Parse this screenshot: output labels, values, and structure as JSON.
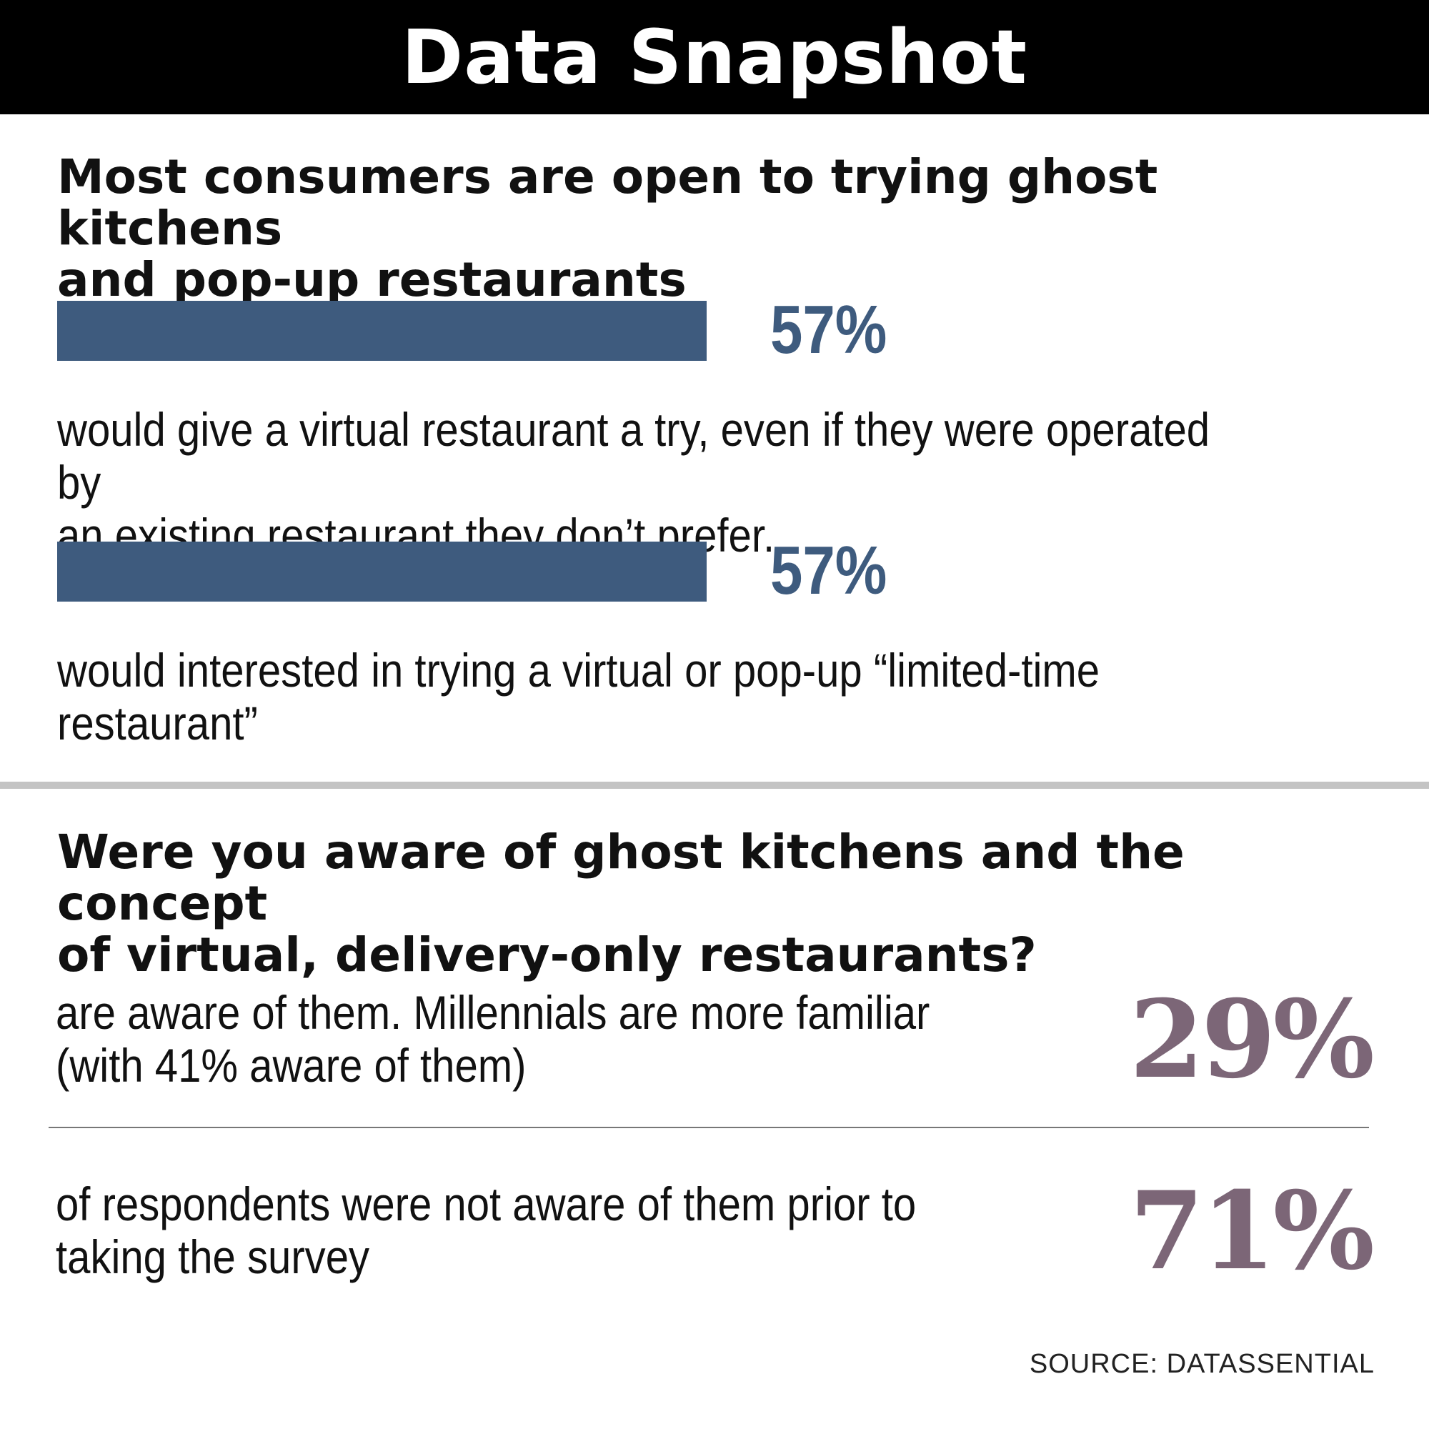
{
  "header": {
    "title": "Data Snapshot"
  },
  "section1": {
    "heading_line1": "Most consumers are open to trying ghost kitchens",
    "heading_line2": "and pop-up restaurants"
  },
  "section2": {
    "heading_line1": "Were you aware of ghost kitchens and the concept",
    "heading_line2": "of virtual, delivery-only restaurants?"
  },
  "source": "SOURCE: DATASSENTIAL",
  "colors": {
    "bar": "#3e5b7e",
    "stat_accent": "#7c6677",
    "header_bg": "#000000"
  },
  "chart_data": [
    {
      "type": "bar",
      "title": "Most consumers are open to trying ghost kitchens and pop-up restaurants",
      "orientation": "horizontal",
      "bars": [
        {
          "value": 57,
          "label": "57%",
          "description_line1": "would give a virtual restaurant a try, even if they were operated by",
          "description_line2": "an existing restaurant they don’t prefer."
        },
        {
          "value": 57,
          "label": "57%",
          "description_line1": "would interested in trying a virtual or pop-up “limited-time",
          "description_line2": "restaurant”"
        }
      ]
    },
    {
      "type": "table",
      "title": "Were you aware of ghost kitchens and the concept of virtual, delivery-only restaurants?",
      "rows": [
        {
          "value": 29,
          "label": "29%",
          "description_line1": "are aware of them. Millennials are more familiar",
          "description_line2": "(with 41% aware of them)"
        },
        {
          "value": 71,
          "label": "71%",
          "description_line1": "of respondents were not aware of them prior to",
          "description_line2": "taking the survey"
        }
      ]
    }
  ]
}
